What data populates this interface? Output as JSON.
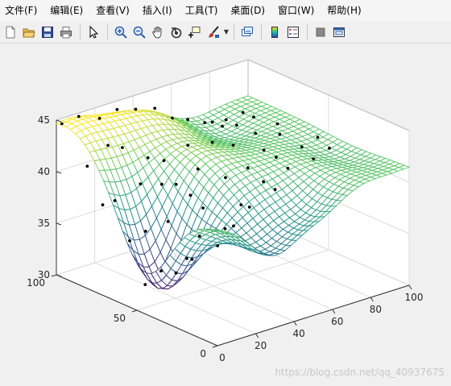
{
  "menu": [
    "文件(F)",
    "编辑(E)",
    "查看(V)",
    "插入(I)",
    "工具(T)",
    "桌面(D)",
    "窗口(W)",
    "帮助(H)"
  ],
  "toolbar": [
    {
      "name": "new-figure-icon",
      "color": "#ffffff"
    },
    {
      "name": "open-file-icon",
      "color": "#e8b64a"
    },
    {
      "name": "save-icon",
      "color": "#2d4f9c"
    },
    {
      "name": "print-icon",
      "color": "#8a8a8a"
    },
    {
      "sep": true
    },
    {
      "name": "edit-plot-arrow-icon"
    },
    {
      "sep": true
    },
    {
      "name": "zoom-in-icon"
    },
    {
      "name": "zoom-out-icon"
    },
    {
      "name": "pan-hand-icon"
    },
    {
      "name": "rotate-3d-icon"
    },
    {
      "name": "data-cursor-icon"
    },
    {
      "name": "brush-icon",
      "dropdown": true
    },
    {
      "sep": true
    },
    {
      "name": "link-plot-icon"
    },
    {
      "sep": true
    },
    {
      "name": "colorbar-icon"
    },
    {
      "name": "legend-icon"
    },
    {
      "sep": true
    },
    {
      "name": "hide-plot-tools-icon"
    },
    {
      "name": "show-plot-tools-icon"
    }
  ],
  "watermark": "https://blog.csdn.net/qq_40937675",
  "chart_data": {
    "type": "surface",
    "xlim": [
      0,
      100
    ],
    "ylim": [
      0,
      100
    ],
    "zlim": [
      30,
      45
    ],
    "xticks": [
      0,
      20,
      40,
      60,
      80,
      100
    ],
    "yticks": [
      0,
      50,
      100
    ],
    "zticks": [
      30,
      35,
      40,
      45
    ],
    "grid": true,
    "colormap": [
      "#440154",
      "#3b528b",
      "#21908d",
      "#5dc863",
      "#fde725"
    ],
    "surface_grid": 34,
    "points": [
      [
        2,
        99,
        44.6
      ],
      [
        10,
        98,
        44.9
      ],
      [
        20,
        97,
        44.2
      ],
      [
        30,
        98,
        44.4
      ],
      [
        38,
        96,
        44.1
      ],
      [
        48,
        96,
        43.6
      ],
      [
        58,
        97,
        42.0
      ],
      [
        66,
        97,
        41.4
      ],
      [
        78,
        96,
        40.5
      ],
      [
        86,
        97,
        40.2
      ],
      [
        94,
        96,
        40.5
      ],
      [
        6,
        88,
        41.0
      ],
      [
        16,
        87,
        42.5
      ],
      [
        26,
        90,
        41.5
      ],
      [
        36,
        86,
        40.2
      ],
      [
        46,
        88,
        39.2
      ],
      [
        56,
        85,
        40.3
      ],
      [
        64,
        84,
        42.1
      ],
      [
        74,
        85,
        41.1
      ],
      [
        84,
        88,
        40.4
      ],
      [
        92,
        87,
        40.8
      ],
      [
        4,
        76,
        38.2
      ],
      [
        12,
        78,
        38.0
      ],
      [
        22,
        74,
        39.3
      ],
      [
        34,
        75,
        38.5
      ],
      [
        44,
        78,
        37.7
      ],
      [
        52,
        74,
        39.0
      ],
      [
        62,
        77,
        40.8
      ],
      [
        72,
        76,
        40.0
      ],
      [
        82,
        74,
        40.7
      ],
      [
        96,
        77,
        40.6
      ],
      [
        8,
        64,
        35.3
      ],
      [
        18,
        66,
        35.5
      ],
      [
        28,
        64,
        36.0
      ],
      [
        38,
        62,
        38.1
      ],
      [
        48,
        66,
        36.0
      ],
      [
        58,
        64,
        38.5
      ],
      [
        68,
        62,
        39.0
      ],
      [
        78,
        64,
        40.0
      ],
      [
        88,
        66,
        40.8
      ],
      [
        6,
        52,
        32.0
      ],
      [
        16,
        54,
        32.6
      ],
      [
        26,
        50,
        33.5
      ],
      [
        36,
        54,
        34.8
      ],
      [
        46,
        50,
        35.2
      ],
      [
        56,
        52,
        36.8
      ],
      [
        66,
        50,
        38.6
      ],
      [
        76,
        54,
        40.1
      ],
      [
        86,
        50,
        40.8
      ],
      [
        96,
        52,
        41.0
      ],
      [
        12,
        40,
        33.6
      ],
      [
        22,
        42,
        34.2
      ],
      [
        32,
        38,
        35.2
      ],
      [
        42,
        40,
        36.4
      ],
      [
        52,
        42,
        37.5
      ],
      [
        62,
        38,
        38.9
      ],
      [
        72,
        42,
        40.1
      ],
      [
        82,
        38,
        40.7
      ],
      [
        92,
        40,
        41.0
      ]
    ]
  }
}
